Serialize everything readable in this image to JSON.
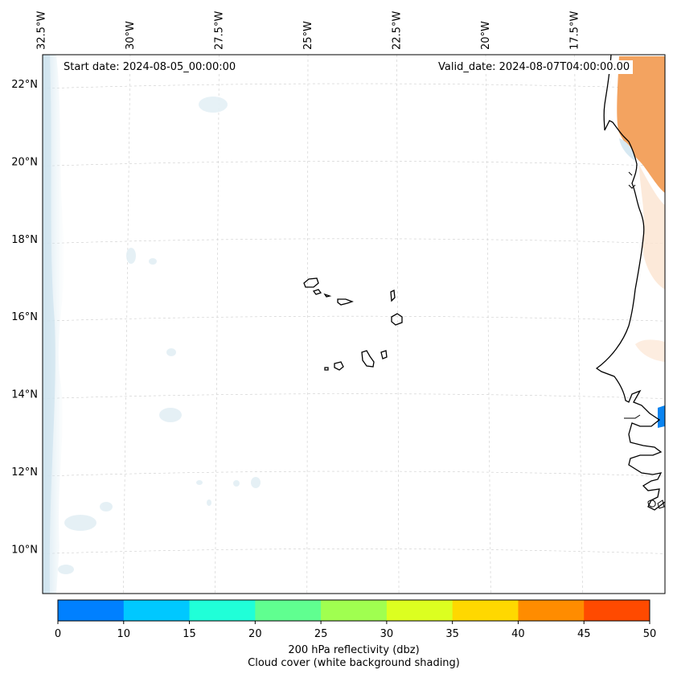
{
  "map": {
    "start_date": "Start date: 2024-08-05_00:00:00",
    "valid_date": "Valid_date: 2024-08-07T04:00:00.00",
    "lon_labels": [
      {
        "text": "32.5°W",
        "lon": -32.5
      },
      {
        "text": "30°W",
        "lon": -30
      },
      {
        "text": "27.5°W",
        "lon": -27.5
      },
      {
        "text": "25°W",
        "lon": -25
      },
      {
        "text": "22.5°W",
        "lon": -22.5
      },
      {
        "text": "20°W",
        "lon": -20
      },
      {
        "text": "17.5°W",
        "lon": -17.5
      }
    ],
    "lat_labels": [
      {
        "text": "22°N",
        "lat": 22
      },
      {
        "text": "20°N",
        "lat": 20
      },
      {
        "text": "18°N",
        "lat": 18
      },
      {
        "text": "16°N",
        "lat": 16
      },
      {
        "text": "14°N",
        "lat": 14
      },
      {
        "text": "12°N",
        "lat": 12
      },
      {
        "text": "10°N",
        "lat": 10
      }
    ],
    "features": [
      "Cape Verde islands",
      "West African coastline",
      "cloud cover shading",
      "reflectivity contours"
    ]
  },
  "colorbar": {
    "ticks": [
      "0",
      "10",
      "15",
      "20",
      "25",
      "30",
      "35",
      "40",
      "45",
      "50"
    ],
    "colors": [
      "#0080ff",
      "#00c8ff",
      "#20ffd8",
      "#60ff90",
      "#a0ff50",
      "#dcff20",
      "#ffd800",
      "#ff8c00",
      "#ff4a00"
    ],
    "label_line1": "200 hPa reflectivity (dbz)",
    "label_line2": "Cloud cover (white background shading)"
  }
}
